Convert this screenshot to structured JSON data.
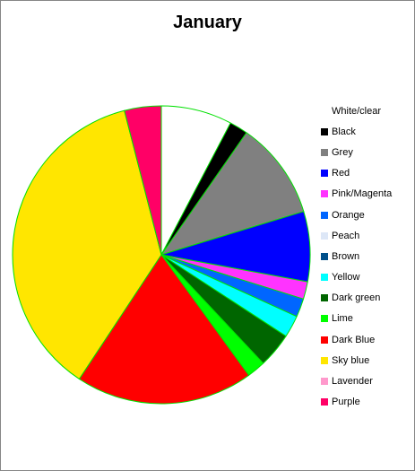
{
  "chart_data": {
    "type": "pie",
    "title": "January",
    "legend_position": "right",
    "slice_border_color": "#00e000",
    "series": [
      {
        "name": "White/clear",
        "value": 7.7,
        "color": "#ffffff"
      },
      {
        "name": "Black",
        "value": 2.0,
        "color": "#000000"
      },
      {
        "name": "Grey",
        "value": 10.6,
        "color": "#808080"
      },
      {
        "name": "Red",
        "value": 7.6,
        "color": "#0000ff"
      },
      {
        "name": "Pink/Magenta",
        "value": 1.9,
        "color": "#ff33ff"
      },
      {
        "name": "Orange",
        "value": 2.0,
        "color": "#0066ff"
      },
      {
        "name": "Peach",
        "value": 0.0,
        "color": "#dde7f7"
      },
      {
        "name": "Brown",
        "value": 0.0,
        "color": "#00508a"
      },
      {
        "name": "Yellow",
        "value": 2.4,
        "color": "#00ffff"
      },
      {
        "name": "Dark green",
        "value": 3.8,
        "color": "#006600"
      },
      {
        "name": "Lime",
        "value": 2.0,
        "color": "#00ff00"
      },
      {
        "name": "Dark Blue",
        "value": 19.3,
        "color": "#ff0000"
      },
      {
        "name": "Sky blue",
        "value": 36.7,
        "color": "#ffe600"
      },
      {
        "name": "Lavender",
        "value": 0.0,
        "color": "#ff99cc"
      },
      {
        "name": "Purple",
        "value": 4.0,
        "color": "#ff0066"
      }
    ]
  }
}
